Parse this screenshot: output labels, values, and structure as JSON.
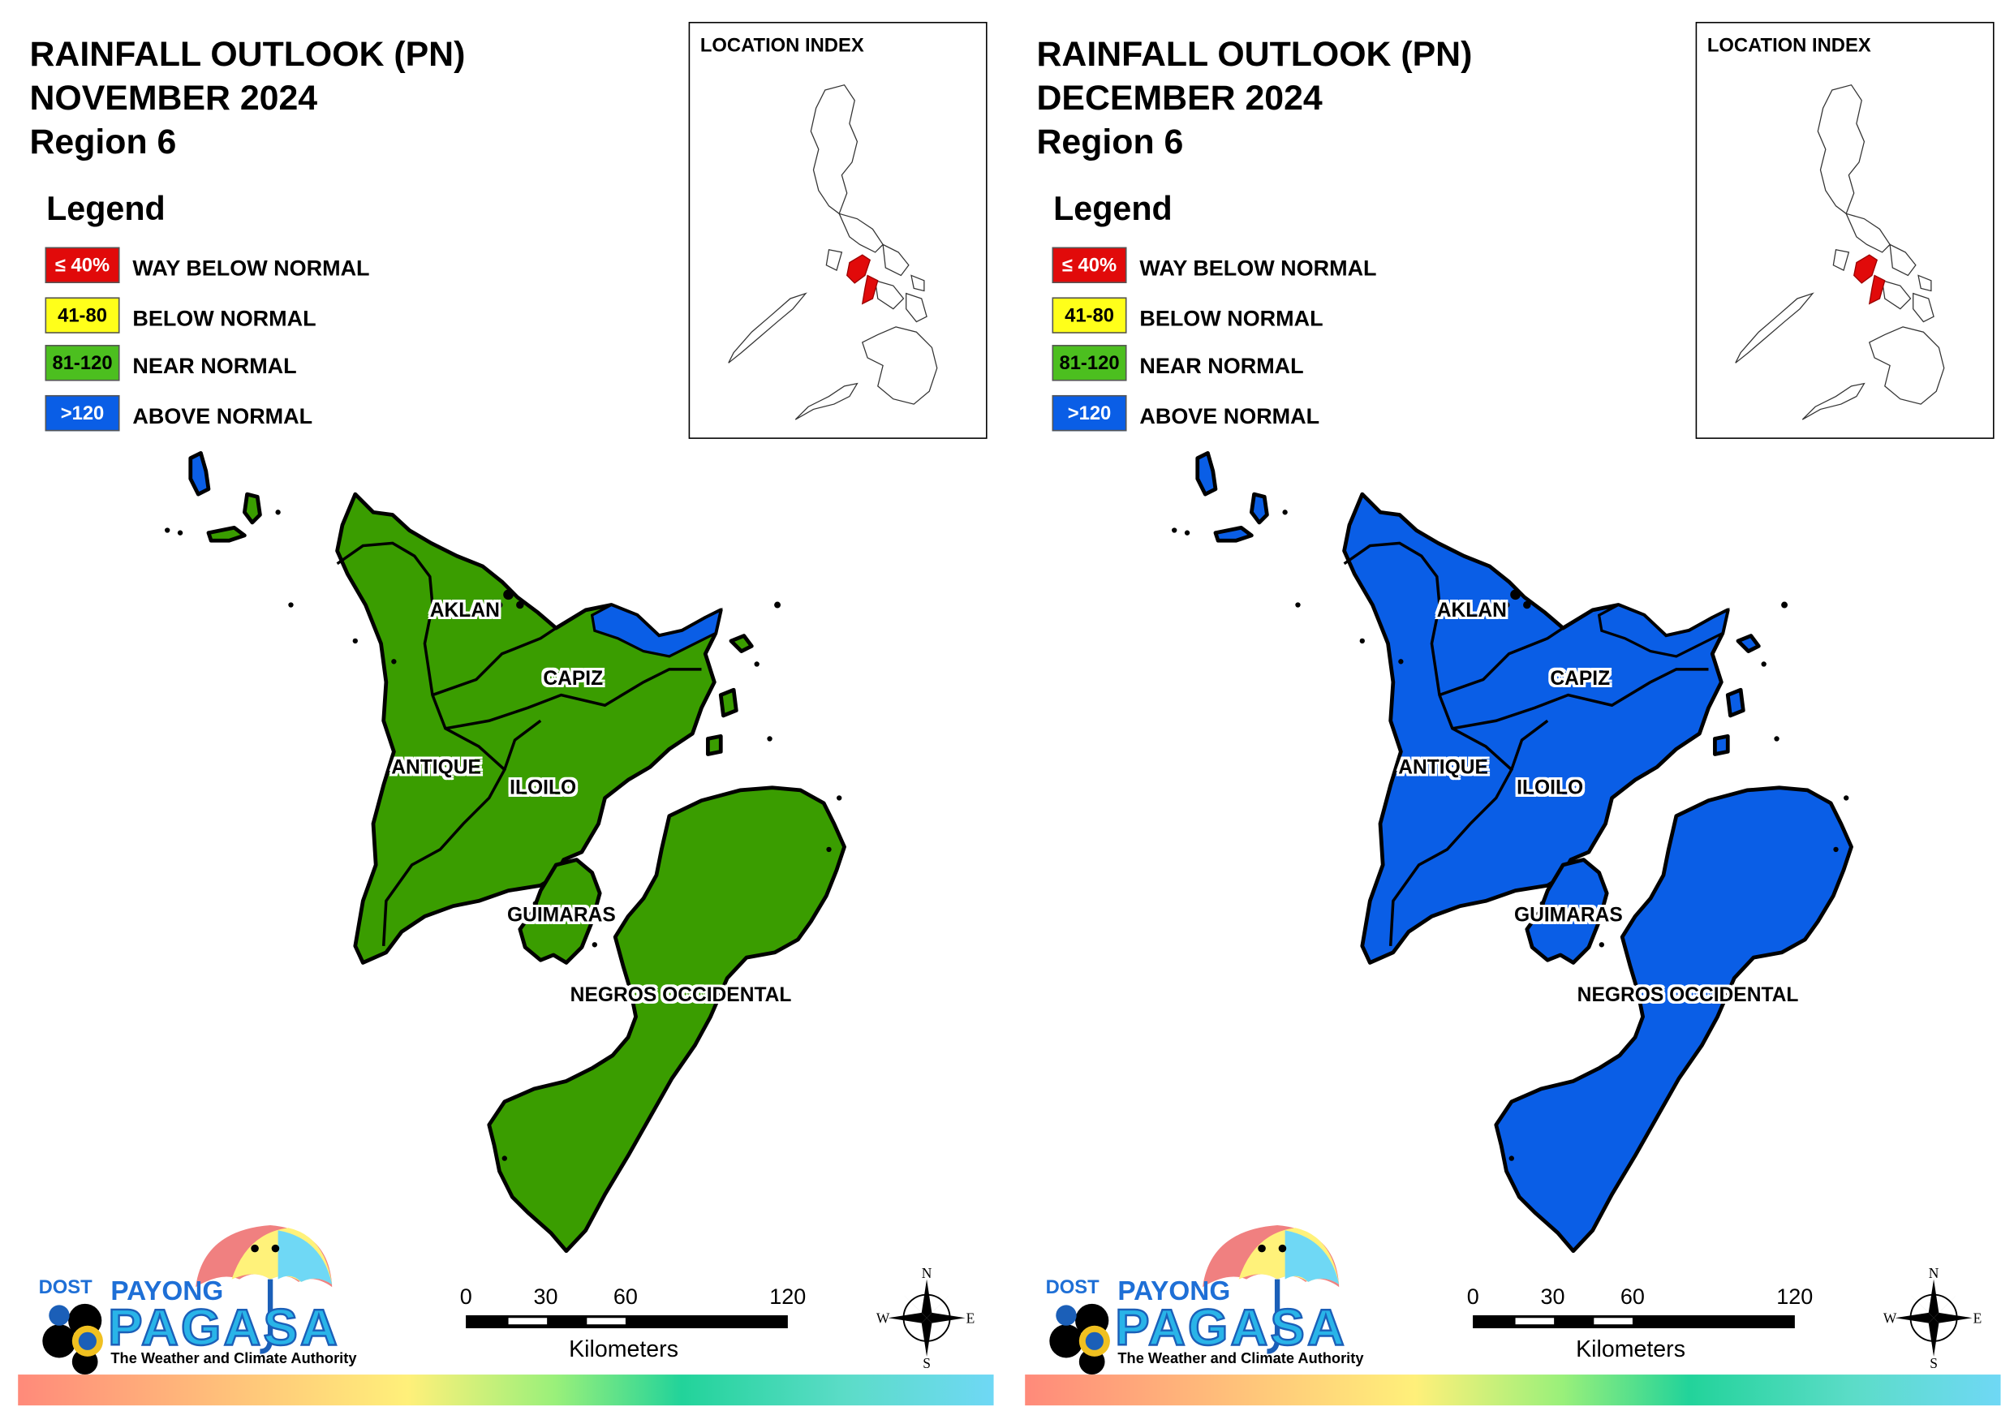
{
  "panels": [
    {
      "title_line1": "RAINFALL OUTLOOK (PN)",
      "title_line2": "NOVEMBER 2024",
      "title_line3": "Region 6",
      "fill_color": "#3a9d00",
      "small_fill_color": "#0a5ee6",
      "legend_title": "Legend",
      "legend": [
        {
          "code": "≤ 40%",
          "label": "WAY BELOW NORMAL",
          "color": "#e10a0a",
          "text_color": "#ffffff"
        },
        {
          "code": "41-80",
          "label": "BELOW NORMAL",
          "color": "#ffff1a",
          "text_color": "#000000"
        },
        {
          "code": "81-120",
          "label": "NEAR NORMAL",
          "color": "#4cbf1f",
          "text_color": "#000000"
        },
        {
          "code": ">120",
          "label": "ABOVE NORMAL",
          "color": "#0a5ee6",
          "text_color": "#ffffff"
        }
      ],
      "location_index_title": "LOCATION INDEX",
      "provinces": {
        "aklan": "AKLAN",
        "capiz": "CAPIZ",
        "antique": "ANTIQUE",
        "iloilo": "ILOILO",
        "guimaras": "GUIMARAS",
        "negros": "NEGROS OCCIDENTAL"
      },
      "scale": {
        "ticks": [
          "0",
          "30",
          "60",
          "120"
        ],
        "unit": "Kilometers"
      },
      "compass": {
        "n": "N",
        "s": "S",
        "e": "E",
        "w": "W"
      },
      "logo": {
        "dost": "DOST",
        "payong": "PAYONG",
        "pagasa": "PAGASA",
        "tagline": "The Weather and Climate Authority"
      }
    },
    {
      "title_line1": "RAINFALL OUTLOOK (PN)",
      "title_line2": "DECEMBER 2024",
      "title_line3": "Region 6",
      "fill_color": "#0a5ee6",
      "small_fill_color": "#0a5ee6",
      "legend_title": "Legend",
      "legend": [
        {
          "code": "≤ 40%",
          "label": "WAY BELOW NORMAL",
          "color": "#e10a0a",
          "text_color": "#ffffff"
        },
        {
          "code": "41-80",
          "label": "BELOW NORMAL",
          "color": "#ffff1a",
          "text_color": "#000000"
        },
        {
          "code": "81-120",
          "label": "NEAR NORMAL",
          "color": "#4cbf1f",
          "text_color": "#000000"
        },
        {
          "code": ">120",
          "label": "ABOVE NORMAL",
          "color": "#0a5ee6",
          "text_color": "#ffffff"
        }
      ],
      "location_index_title": "LOCATION INDEX",
      "provinces": {
        "aklan": "AKLAN",
        "capiz": "CAPIZ",
        "antique": "ANTIQUE",
        "iloilo": "ILOILO",
        "guimaras": "GUIMARAS",
        "negros": "NEGROS OCCIDENTAL"
      },
      "scale": {
        "ticks": [
          "0",
          "30",
          "60",
          "120"
        ],
        "unit": "Kilometers"
      },
      "compass": {
        "n": "N",
        "s": "S",
        "e": "E",
        "w": "W"
      },
      "logo": {
        "dost": "DOST",
        "payong": "PAYONG",
        "pagasa": "PAGASA",
        "tagline": "The Weather and Climate Authority"
      }
    }
  ]
}
